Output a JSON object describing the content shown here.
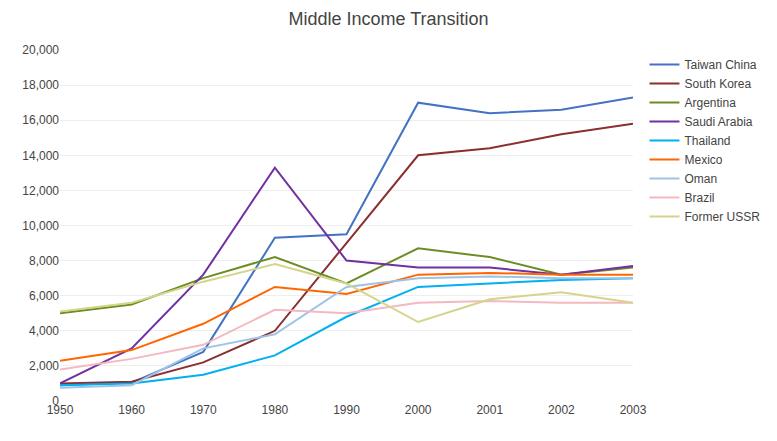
{
  "chart_data": {
    "type": "line",
    "title": "Middle Income Transition",
    "categories": [
      "1950",
      "1960",
      "1970",
      "1980",
      "1990",
      "2000",
      "2001",
      "2002",
      "2003"
    ],
    "series": [
      {
        "name": "Taiwan China",
        "color": "#4472C4",
        "values": [
          900,
          1050,
          2800,
          9300,
          9500,
          17000,
          16400,
          16600,
          17300
        ]
      },
      {
        "name": "South Korea",
        "color": "#8B2E2E",
        "values": [
          1000,
          1100,
          2200,
          4000,
          9000,
          14000,
          14400,
          15200,
          15800
        ]
      },
      {
        "name": "Argentina",
        "color": "#6B8E23",
        "values": [
          5000,
          5500,
          7000,
          8200,
          6700,
          8700,
          8200,
          7200,
          7600
        ]
      },
      {
        "name": "Saudi Arabia",
        "color": "#7030A0",
        "values": [
          1000,
          3000,
          7200,
          13300,
          8000,
          7600,
          7600,
          7200,
          7700
        ]
      },
      {
        "name": "Thailand",
        "color": "#00B0F0",
        "values": [
          900,
          1000,
          1500,
          2600,
          4800,
          6500,
          6700,
          6900,
          7000
        ]
      },
      {
        "name": "Mexico",
        "color": "#FF6600",
        "values": [
          2300,
          2900,
          4400,
          6500,
          6100,
          7200,
          7300,
          7200,
          7200
        ]
      },
      {
        "name": "Oman",
        "color": "#9DC3E6",
        "values": [
          750,
          900,
          3000,
          3800,
          6500,
          7000,
          7100,
          7000,
          7000
        ]
      },
      {
        "name": "Brazil",
        "color": "#F4B8C1",
        "values": [
          1800,
          2400,
          3200,
          5200,
          5000,
          5600,
          5700,
          5600,
          5600
        ]
      },
      {
        "name": "Former USSR",
        "color": "#D4D48C",
        "values": [
          5100,
          5600,
          6800,
          7800,
          6700,
          4500,
          5800,
          6200,
          5600
        ]
      }
    ],
    "ylim": [
      0,
      20000
    ],
    "yticks": [
      0,
      {
        "value": 2000,
        "label": "2,000"
      },
      {
        "value": 4000,
        "label": "4,000"
      },
      {
        "value": 6000,
        "label": "6,000"
      },
      {
        "value": 8000,
        "label": "8,000"
      },
      {
        "value": 10000,
        "label": "10,000"
      },
      {
        "value": 12000,
        "label": "12,000"
      },
      {
        "value": 14000,
        "label": "14,000"
      },
      {
        "value": 16000,
        "label": "16,000"
      },
      {
        "value": 18000,
        "label": "18,000"
      },
      {
        "value": 20000,
        "label": "20,000"
      }
    ],
    "grid": true,
    "legend": "right"
  }
}
